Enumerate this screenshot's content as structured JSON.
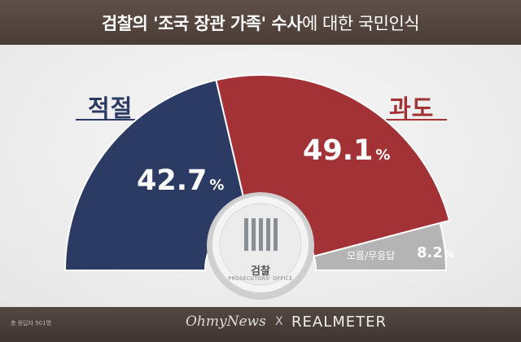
{
  "header": {
    "title_bold": "검찰의 '조국 장관 가족' 수사",
    "title_rest": "에 대한 국민인식"
  },
  "chart_data": {
    "type": "pie",
    "variant": "semicircle",
    "categories": [
      "적절",
      "과도",
      "모름/무응답"
    ],
    "values": [
      42.7,
      49.1,
      8.2
    ],
    "unit": "%",
    "colors": [
      "#2b3b63",
      "#a23235",
      "#b4b4b4"
    ],
    "center_logo_text": "검찰",
    "center_logo_subtext": "PROSECUTORS' OFFICE"
  },
  "labels": {
    "left": "적절",
    "right": "과도"
  },
  "values_display": {
    "a_num": "42.7",
    "b_num": "49.1",
    "c_label": "모름/무응답",
    "c_num": "8.2",
    "pct": "%"
  },
  "footer": {
    "note": "총 응답자 501명",
    "brand_left": "OhmyNews",
    "separator": "X",
    "brand_right": "REALMETER"
  }
}
